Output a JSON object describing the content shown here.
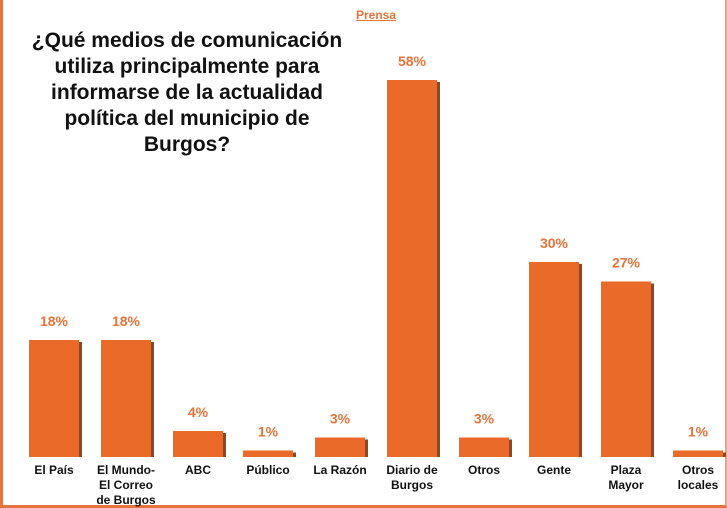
{
  "chart_data": {
    "type": "bar",
    "title": "¿Qué medios de comunicación utiliza principalmente para informarse de la actualidad política del municipio de Burgos?",
    "subtitle": "Prensa",
    "categories": [
      "El País",
      "El Mundo-El Correo de Burgos",
      "ABC",
      "Público",
      "La Razón",
      "Diario de Burgos",
      "Otros",
      "Gente",
      "Plaza Mayor",
      "Otros locales"
    ],
    "values": [
      18,
      18,
      4,
      1,
      3,
      58,
      3,
      30,
      27,
      1
    ],
    "value_labels": [
      "18%",
      "18%",
      "4%",
      "1%",
      "3%",
      "58%",
      "3%",
      "30%",
      "27%",
      "1%"
    ],
    "xlabel": "",
    "ylabel": "",
    "ylim": [
      0,
      60
    ],
    "grid": false,
    "legend": "none",
    "colors": {
      "bar": "#ea6a2a",
      "bar_shadow": "#8a4a2a",
      "label": "#e8733a",
      "text": "#111111"
    }
  }
}
